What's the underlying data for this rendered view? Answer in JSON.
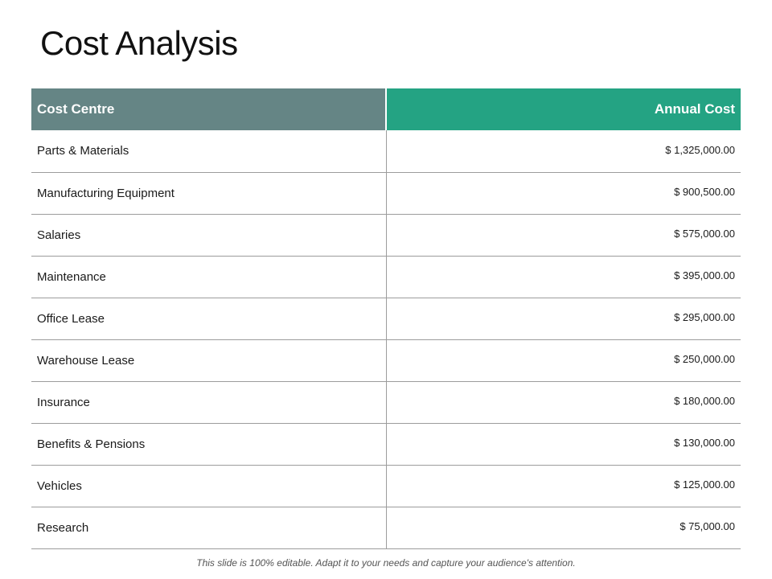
{
  "title": "Cost Analysis",
  "table": {
    "headers": {
      "name": "Cost Centre",
      "cost": "Annual Cost"
    },
    "rows": [
      {
        "name": "Parts & Materials",
        "cost": "$ 1,325,000.00"
      },
      {
        "name": "Manufacturing  Equipment",
        "cost": "$ 900,500.00"
      },
      {
        "name": "Salaries",
        "cost": "$ 575,000.00"
      },
      {
        "name": "Maintenance",
        "cost": "$ 395,000.00"
      },
      {
        "name": "Office Lease",
        "cost": "$ 295,000.00"
      },
      {
        "name": "Warehouse  Lease",
        "cost": "$ 250,000.00"
      },
      {
        "name": "Insurance",
        "cost": "$ 180,000.00"
      },
      {
        "name": "Benefits & Pensions",
        "cost": "$ 130,000.00"
      },
      {
        "name": "Vehicles",
        "cost": "$ 125,000.00"
      },
      {
        "name": "Research",
        "cost": "$ 75,000.00"
      }
    ]
  },
  "colors": {
    "header_name_bg": "#658585",
    "header_cost_bg": "#24a383",
    "row_divider": "#9c9c9c"
  },
  "footer": "This slide is 100% editable. Adapt it to your needs and capture your audience's attention."
}
